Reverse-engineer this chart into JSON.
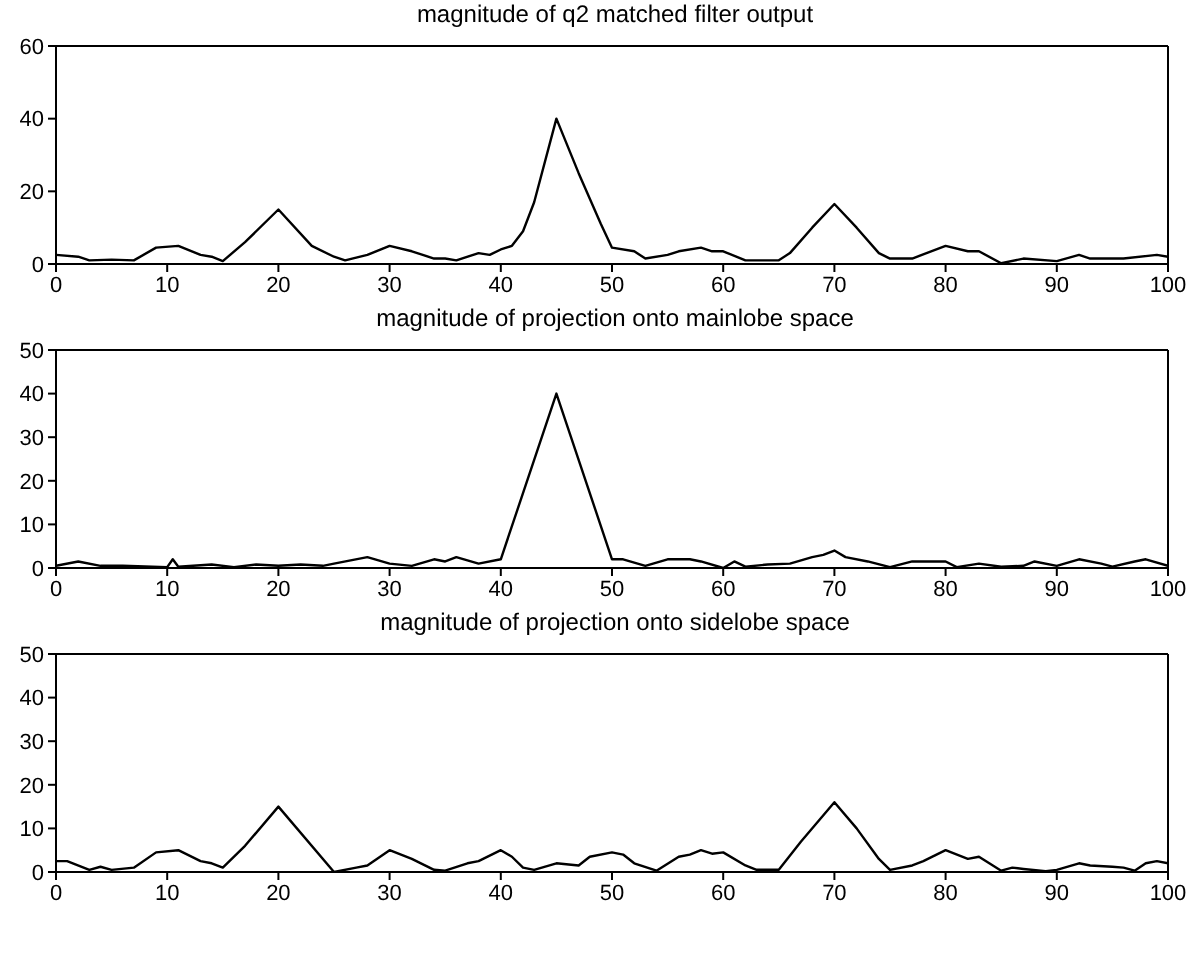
{
  "chart_data": [
    {
      "type": "line",
      "title": "magnitude of q2 matched filter output",
      "xlim": [
        0,
        100
      ],
      "xticks": [
        0,
        10,
        20,
        30,
        40,
        50,
        60,
        70,
        80,
        90,
        100
      ],
      "ylim": [
        0,
        60
      ],
      "yticks": [
        0,
        20,
        40,
        60
      ],
      "marker": "none",
      "line_style": "solid",
      "series": [
        {
          "color": "#000000",
          "x": [
            0,
            2,
            3,
            5,
            7,
            9,
            11,
            13,
            14,
            15,
            17,
            20,
            23,
            25,
            26,
            28,
            30,
            32,
            34,
            35,
            36,
            38,
            39,
            40,
            41,
            42,
            43,
            45,
            47,
            49,
            50,
            52,
            53,
            55,
            56,
            58,
            59,
            60,
            62,
            65,
            66,
            68,
            70,
            72,
            74,
            75,
            77,
            80,
            82,
            83,
            85,
            87,
            90,
            92,
            93,
            96,
            99,
            100
          ],
          "values": [
            2.5,
            2,
            1,
            1.2,
            1,
            4.5,
            5,
            2.5,
            2,
            0.8,
            6,
            15,
            5,
            2,
            1,
            2.5,
            5,
            3.5,
            1.5,
            1.5,
            1,
            3,
            2.5,
            4,
            5,
            9,
            17,
            40,
            25,
            11,
            4.5,
            3.5,
            1.5,
            2.5,
            3.5,
            4.5,
            3.5,
            3.5,
            1,
            1,
            3,
            10,
            16.5,
            10,
            3,
            1.5,
            1.5,
            5,
            3.5,
            3.5,
            0.2,
            1.5,
            0.8,
            2.5,
            1.5,
            1.5,
            2.5,
            2
          ]
        }
      ]
    },
    {
      "type": "line",
      "title": "magnitude of projection onto mainlobe space",
      "xlim": [
        0,
        100
      ],
      "xticks": [
        0,
        10,
        20,
        30,
        40,
        50,
        60,
        70,
        80,
        90,
        100
      ],
      "ylim": [
        0,
        50
      ],
      "yticks": [
        0,
        10,
        20,
        30,
        40,
        50
      ],
      "marker": "none",
      "line_style": "solid",
      "series": [
        {
          "color": "#000000",
          "x": [
            0,
            2,
            4,
            6,
            10,
            10.5,
            11,
            14,
            16,
            18,
            20,
            22,
            24,
            25,
            28,
            30,
            32,
            34,
            35,
            36,
            38,
            40,
            45,
            50,
            51,
            53,
            55,
            57,
            58,
            60,
            61,
            62,
            64,
            66,
            68,
            69,
            70,
            71,
            73,
            75,
            77,
            80,
            81,
            83,
            85,
            87,
            88,
            90,
            92,
            94,
            95,
            97,
            98,
            100
          ],
          "values": [
            0.5,
            1.5,
            0.5,
            0.5,
            0.2,
            2,
            0.3,
            0.8,
            0.2,
            0.8,
            0.5,
            0.8,
            0.5,
            1,
            2.5,
            1,
            0.5,
            2,
            1.5,
            2.5,
            1,
            2,
            40,
            2,
            2,
            0.5,
            2,
            2,
            1.5,
            0,
            1.5,
            0.3,
            0.8,
            1,
            2.5,
            3,
            4,
            2.5,
            1.5,
            0.2,
            1.5,
            1.5,
            0.2,
            1,
            0.3,
            0.5,
            1.5,
            0.5,
            2,
            1,
            0.3,
            1.5,
            2,
            0.5
          ]
        }
      ]
    },
    {
      "type": "line",
      "title": "magnitude of projection onto sidelobe space",
      "xlim": [
        0,
        100
      ],
      "xticks": [
        0,
        10,
        20,
        30,
        40,
        50,
        60,
        70,
        80,
        90,
        100
      ],
      "ylim": [
        0,
        50
      ],
      "yticks": [
        0,
        10,
        20,
        30,
        40,
        50
      ],
      "marker": "none",
      "line_style": "solid",
      "series": [
        {
          "color": "#000000",
          "x": [
            0,
            1,
            3,
            4,
            5,
            7,
            9,
            11,
            13,
            14,
            15,
            17,
            20,
            25,
            27,
            28,
            30,
            32,
            34,
            35,
            37,
            38,
            40,
            41,
            42,
            43,
            45,
            47,
            48,
            50,
            51,
            52,
            54,
            56,
            57,
            58,
            59,
            60,
            62,
            63,
            65,
            67,
            70,
            72,
            74,
            75,
            77,
            78,
            80,
            82,
            83,
            85,
            86,
            87,
            89,
            90,
            92,
            93,
            95,
            96,
            97,
            98,
            99,
            100
          ],
          "values": [
            2.5,
            2.5,
            0.5,
            1.2,
            0.5,
            1,
            4.5,
            5,
            2.5,
            2,
            1,
            6,
            15,
            0,
            1,
            1.5,
            5,
            3,
            0.5,
            0.3,
            2,
            2.5,
            5,
            3.5,
            1,
            0.5,
            2,
            1.5,
            3.5,
            4.5,
            4,
            2,
            0.3,
            3.5,
            4,
            5,
            4.2,
            4.5,
            1.5,
            0.5,
            0.5,
            7,
            16,
            10,
            3,
            0.5,
            1.5,
            2.5,
            5,
            3,
            3.5,
            0.3,
            1,
            0.7,
            0.2,
            0.5,
            2,
            1.5,
            1.2,
            1,
            0.3,
            2,
            2.5,
            2
          ]
        }
      ]
    }
  ]
}
